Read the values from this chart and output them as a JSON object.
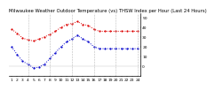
{
  "title": "Milwaukee Weather Outdoor Temperature (vs) THSW Index per Hour (Last 24 Hours)",
  "temp_color": "#dd0000",
  "thsw_color": "#0000cc",
  "background_color": "#ffffff",
  "plot_bg_color": "#ffffff",
  "hours": [
    1,
    2,
    3,
    4,
    5,
    6,
    7,
    8,
    9,
    10,
    11,
    12,
    13,
    14,
    15,
    16,
    17,
    18,
    19,
    20,
    21,
    22,
    23,
    24
  ],
  "temp_values": [
    38,
    34,
    29,
    27,
    26,
    28,
    30,
    33,
    36,
    40,
    43,
    44,
    46,
    43,
    42,
    38,
    36,
    36,
    36,
    36,
    36,
    36,
    36,
    36
  ],
  "thsw_values": [
    20,
    12,
    5,
    2,
    -2,
    -1,
    2,
    8,
    14,
    20,
    25,
    28,
    32,
    28,
    25,
    20,
    18,
    18,
    18,
    18,
    18,
    18,
    18,
    18
  ],
  "ylim": [
    -10,
    55
  ],
  "ytick_positions": [
    50,
    40,
    30,
    20,
    10,
    0,
    -10
  ],
  "ytick_labels": [
    "50",
    "40",
    "30",
    "20",
    "10",
    "0",
    ""
  ],
  "grid_color": "#aaaaaa",
  "title_fontsize": 3.8,
  "tick_fontsize": 3.2,
  "line_width": 0.7,
  "marker_size": 1.2,
  "vgrid_positions": [
    4,
    8,
    12,
    16,
    20,
    24
  ]
}
